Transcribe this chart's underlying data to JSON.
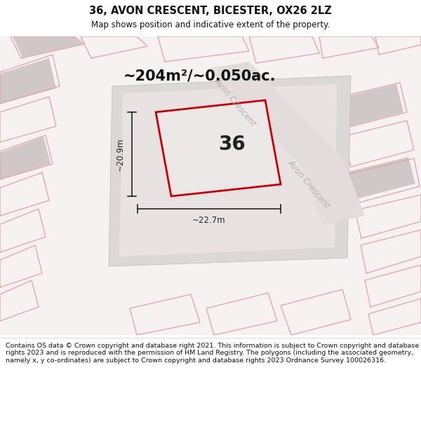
{
  "title_line1": "36, AVON CRESCENT, BICESTER, OX26 2LZ",
  "title_line2": "Map shows position and indicative extent of the property.",
  "area_text": "~204m²/~0.050ac.",
  "label_36": "36",
  "dim_width": "~22.7m",
  "dim_height": "~20.9m",
  "street_label": "Avon Crescent",
  "footer": "Contains OS data © Crown copyright and database right 2021. This information is subject to Crown copyright and database rights 2023 and is reproduced with the permission of HM Land Registry. The polygons (including the associated geometry, namely x, y co-ordinates) are subject to Crown copyright and database rights 2023 Ordnance Survey 100026316.",
  "bg_color": "#ffffff",
  "map_bg": "#f7f2f2",
  "plot_fill": "#e6e0e0",
  "inner_fill": "#ebe5e5",
  "pink_line_color": "#e8a0a0",
  "red_outline_color": "#cc0000",
  "road_label_color": "#b8b0b0",
  "dim_color": "#222222",
  "title_color": "#111111",
  "footer_color": "#111111",
  "area_text_color": "#111111",
  "grey_bld_color": "#d0c8c8",
  "road_stripe_color": "#e0d8d8"
}
